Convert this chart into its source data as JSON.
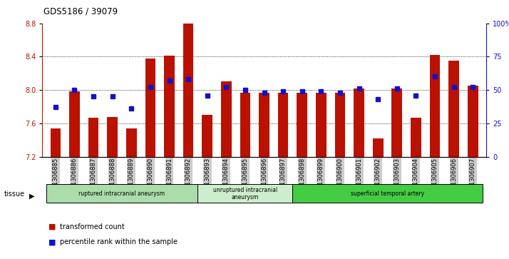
{
  "title": "GDS5186 / 39079",
  "samples": [
    "GSM1306885",
    "GSM1306886",
    "GSM1306887",
    "GSM1306888",
    "GSM1306889",
    "GSM1306890",
    "GSM1306891",
    "GSM1306892",
    "GSM1306893",
    "GSM1306894",
    "GSM1306895",
    "GSM1306896",
    "GSM1306897",
    "GSM1306898",
    "GSM1306899",
    "GSM1306900",
    "GSM1306901",
    "GSM1306902",
    "GSM1306903",
    "GSM1306904",
    "GSM1306905",
    "GSM1306906",
    "GSM1306907"
  ],
  "bar_values": [
    7.54,
    7.98,
    7.67,
    7.68,
    7.54,
    8.38,
    8.41,
    8.8,
    7.7,
    8.1,
    7.97,
    7.97,
    7.97,
    7.97,
    7.97,
    7.97,
    8.02,
    7.42,
    8.02,
    7.67,
    8.42,
    8.35,
    8.05
  ],
  "percentile_values": [
    37,
    50,
    45,
    45,
    36,
    52,
    57,
    58,
    46,
    52,
    50,
    48,
    49,
    49,
    49,
    48,
    51,
    43,
    51,
    46,
    60,
    52,
    52
  ],
  "ylim_left": [
    7.2,
    8.8
  ],
  "ylim_right": [
    0,
    100
  ],
  "yticks_left": [
    7.2,
    7.6,
    8.0,
    8.4,
    8.8
  ],
  "yticks_right": [
    0,
    25,
    50,
    75,
    100
  ],
  "ytick_right_labels": [
    "0",
    "25",
    "50",
    "75",
    "100%"
  ],
  "bar_color": "#bb1100",
  "dot_color": "#1111cc",
  "plot_bg": "#ffffff",
  "fig_bg": "#ffffff",
  "tick_bg": "#cccccc",
  "groups": [
    {
      "label": "ruptured intracranial aneurysm",
      "start": 0,
      "end": 8,
      "color": "#aaddaa"
    },
    {
      "label": "unruptured intracranial\naneurysm",
      "start": 8,
      "end": 13,
      "color": "#cceecc"
    },
    {
      "label": "superficial temporal artery",
      "start": 13,
      "end": 23,
      "color": "#44cc44"
    }
  ],
  "legend": [
    {
      "label": "transformed count",
      "color": "#bb1100"
    },
    {
      "label": "percentile rank within the sample",
      "color": "#1111cc"
    }
  ]
}
